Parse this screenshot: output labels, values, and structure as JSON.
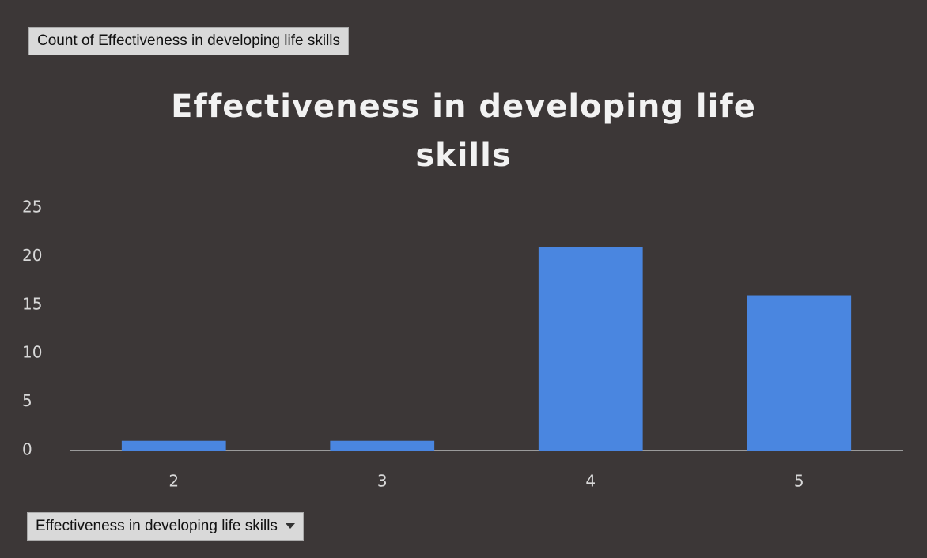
{
  "chart_data": {
    "type": "bar",
    "title": "Effectiveness in developing life skills",
    "value_field": "Count of Effectiveness in developing life skills",
    "axis_field": "Effectiveness in developing life skills",
    "categories": [
      "2",
      "3",
      "4",
      "5"
    ],
    "values": [
      1,
      1,
      21,
      16
    ],
    "color": "#4a86e0",
    "ylim": [
      0,
      25
    ],
    "yticks": [
      0,
      5,
      10,
      15,
      20,
      25
    ],
    "grid": false
  }
}
